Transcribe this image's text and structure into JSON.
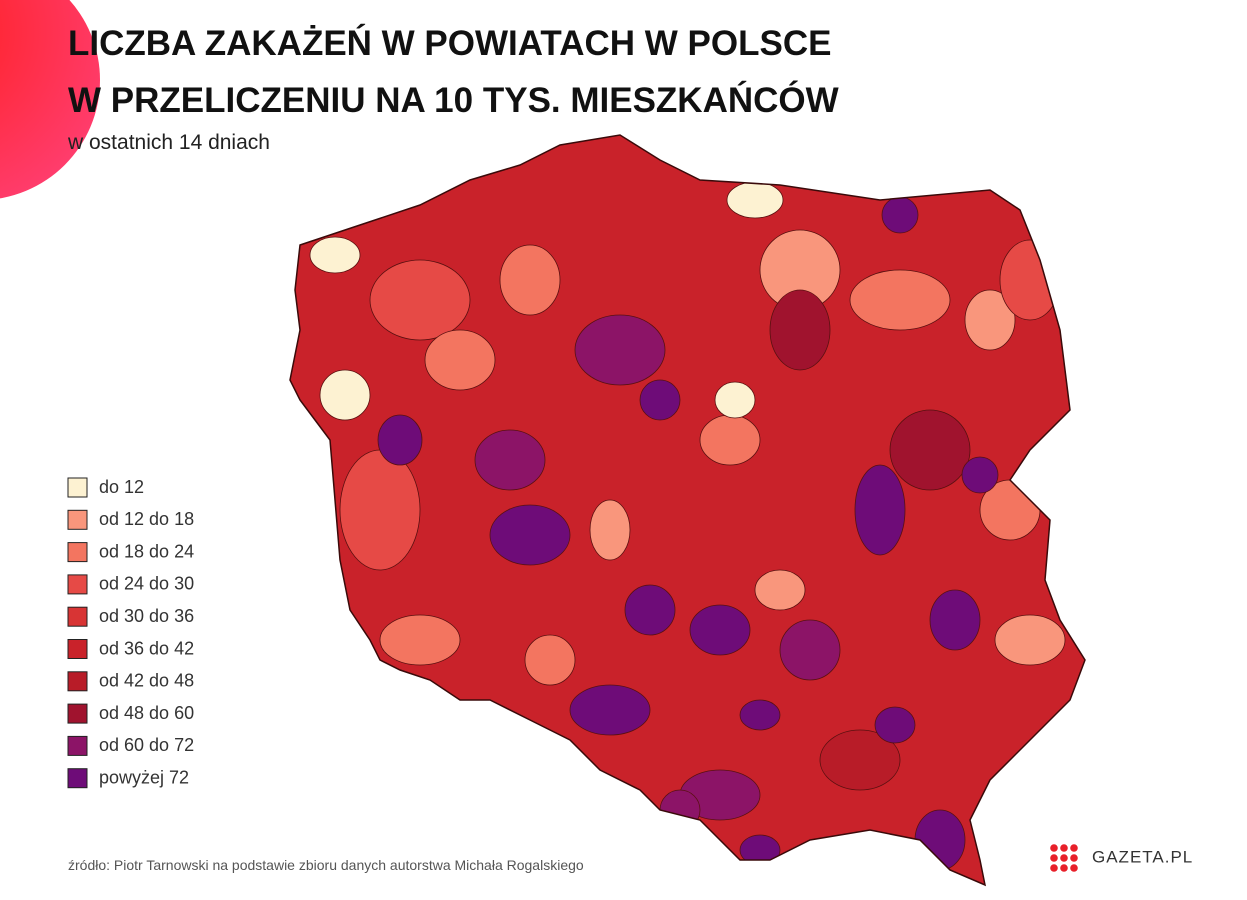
{
  "header": {
    "title_lines": [
      "LICZBA ZAKAŻEŃ W POWIATACH W POLSCE",
      "W PRZELICZENIU NA 10 TYS. MIESZKAŃCÓW"
    ],
    "subtitle": "w ostatnich 14 dniach"
  },
  "legend": {
    "items": [
      {
        "label": "do 12",
        "color": "#fdf2d2"
      },
      {
        "label": "od 12 do 18",
        "color": "#f9967c"
      },
      {
        "label": "od 18 do 24",
        "color": "#f37560"
      },
      {
        "label": "od 24 do 30",
        "color": "#e64a46"
      },
      {
        "label": "od 30 do 36",
        "color": "#d83434"
      },
      {
        "label": "od 36 do 42",
        "color": "#c9222a"
      },
      {
        "label": "od 42 do 48",
        "color": "#b81c28"
      },
      {
        "label": "od 48 do 60",
        "color": "#a0132e"
      },
      {
        "label": "od 60 do 72",
        "color": "#8c1467"
      },
      {
        "label": "powyżej 72",
        "color": "#6e0c78"
      }
    ]
  },
  "source": "źródło: Piotr Tarnowski na podstawie zbioru danych autorstwa Michała Rogalskiego",
  "logo": "GAZETA.PL"
}
